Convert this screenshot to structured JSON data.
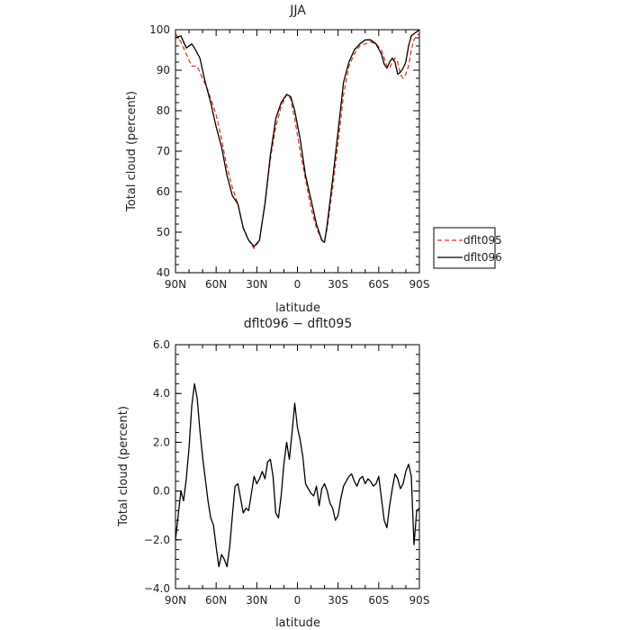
{
  "chart_data": [
    {
      "type": "line",
      "title": "JJA",
      "xlabel": "latitude",
      "ylabel": "Total cloud (percent)",
      "x_ticks": [
        90,
        60,
        30,
        0,
        -30,
        -60,
        -90
      ],
      "x_tick_labels": [
        "90N",
        "60N",
        "30N",
        "0",
        "30S",
        "60S",
        "90S"
      ],
      "xlim": [
        90,
        -90
      ],
      "ylim": [
        40,
        100
      ],
      "y_ticks": [
        40,
        50,
        60,
        70,
        80,
        90,
        100
      ],
      "y_tick_labels": [
        "40",
        "50",
        "60",
        "70",
        "80",
        "90",
        "100"
      ],
      "grid": false,
      "legend_position": "right",
      "series": [
        {
          "name": "dflt095",
          "color": "#e8322c",
          "dash": "dashed",
          "x": [
            90,
            86,
            82,
            78,
            74,
            70,
            66,
            60,
            56,
            52,
            48,
            44,
            40,
            36,
            32,
            28,
            24,
            20,
            16,
            12,
            8,
            5,
            2,
            -2,
            -6,
            -10,
            -14,
            -18,
            -20,
            -22,
            -26,
            -30,
            -34,
            -38,
            -42,
            -46,
            -50,
            -54,
            -58,
            -62,
            -64,
            -66,
            -68,
            -70,
            -72,
            -74,
            -76,
            -78,
            -80,
            -82,
            -84,
            -86,
            -88,
            -90
          ],
          "y": [
            99,
            97,
            94,
            91,
            91,
            88,
            85,
            79,
            73,
            66,
            61,
            57,
            51,
            48,
            46,
            48,
            57,
            68,
            76,
            81,
            84,
            83,
            78,
            70,
            63,
            56,
            51,
            48,
            48,
            51,
            61,
            72,
            84,
            91,
            94,
            96,
            96.5,
            97,
            96.5,
            95,
            93,
            91,
            90.5,
            92,
            93,
            92,
            89,
            88,
            89,
            91,
            95,
            97.5,
            98.5,
            99
          ]
        },
        {
          "name": "dflt096",
          "color": "#000000",
          "dash": "solid",
          "x": [
            90,
            86,
            82,
            78,
            76,
            72,
            68,
            64,
            60,
            56,
            52,
            48,
            44,
            40,
            36,
            32,
            28,
            24,
            20,
            16,
            12,
            8,
            5,
            2,
            -2,
            -6,
            -10,
            -14,
            -18,
            -20,
            -22,
            -26,
            -30,
            -34,
            -38,
            -42,
            -46,
            -50,
            -54,
            -58,
            -62,
            -64,
            -66,
            -68,
            -70,
            -72,
            -74,
            -76,
            -78,
            -80,
            -82,
            -84,
            -86,
            -88,
            -90
          ],
          "y": [
            98,
            98.5,
            95.5,
            96.5,
            95.5,
            93,
            87,
            82,
            76,
            71,
            64,
            59,
            57,
            51,
            48,
            46.5,
            48,
            57,
            69,
            78,
            82,
            84,
            83.5,
            80,
            73,
            64,
            58,
            52,
            48,
            47.5,
            52,
            63,
            75,
            87,
            92,
            95,
            96.5,
            97.5,
            97.5,
            96.5,
            94,
            91.5,
            90.5,
            92,
            93,
            92,
            89,
            89.5,
            90.5,
            92,
            96,
            98.5,
            99,
            99.5,
            100
          ]
        }
      ]
    },
    {
      "type": "line",
      "title": "dflt096 − dflt095",
      "xlabel": "latitude",
      "ylabel": "Total cloud (percent)",
      "x_ticks": [
        90,
        60,
        30,
        0,
        -30,
        -60,
        -90
      ],
      "x_tick_labels": [
        "90N",
        "60N",
        "30N",
        "0",
        "30S",
        "60S",
        "90S"
      ],
      "xlim": [
        90,
        -90
      ],
      "ylim": [
        -4,
        6
      ],
      "y_ticks": [
        -4,
        -2,
        0,
        2,
        4,
        6
      ],
      "y_tick_labels": [
        "−4.0",
        "−2.0",
        "0.0",
        "2.0",
        "4.0",
        "6.0"
      ],
      "grid": false,
      "series": [
        {
          "color": "#000000",
          "dash": "solid",
          "x": [
            90,
            88,
            86,
            84,
            82,
            80,
            78,
            76,
            74,
            72,
            70,
            68,
            66,
            64,
            62,
            60,
            58,
            56,
            54,
            52,
            50,
            48,
            46,
            44,
            42,
            40,
            38,
            36,
            34,
            32,
            30,
            28,
            26,
            24,
            22,
            20,
            18,
            16,
            14,
            12,
            10,
            8,
            6,
            4,
            2,
            0,
            -2,
            -4,
            -6,
            -8,
            -10,
            -12,
            -14,
            -16,
            -18,
            -20,
            -22,
            -24,
            -26,
            -28,
            -30,
            -32,
            -34,
            -36,
            -38,
            -40,
            -42,
            -44,
            -46,
            -48,
            -50,
            -52,
            -54,
            -56,
            -58,
            -60,
            -62,
            -64,
            -66,
            -68,
            -70,
            -72,
            -74,
            -76,
            -78,
            -80,
            -82,
            -84,
            -86,
            -88,
            -90
          ],
          "y": [
            -2,
            -1,
            0,
            -0.4,
            0.5,
            1.8,
            3.5,
            4.4,
            3.8,
            2.5,
            1.4,
            0.5,
            -0.4,
            -1.1,
            -1.4,
            -2.3,
            -3.1,
            -2.6,
            -2.8,
            -3.1,
            -2.3,
            -1.0,
            0.2,
            0.3,
            -0.3,
            -0.9,
            -0.7,
            -0.8,
            -0.1,
            0.6,
            0.3,
            0.5,
            0.8,
            0.5,
            1.2,
            1.3,
            0.6,
            -0.9,
            -1.1,
            -0.2,
            1.1,
            2.0,
            1.3,
            2.4,
            3.6,
            2.6,
            2.1,
            1.4,
            0.3,
            0.1,
            -0.1,
            -0.2,
            0.2,
            -0.6,
            0.1,
            0.3,
            0.0,
            -0.5,
            -0.7,
            -1.2,
            -1.0,
            -0.3,
            0.2,
            0.4,
            0.6,
            0.7,
            0.4,
            0.2,
            0.5,
            0.6,
            0.3,
            0.5,
            0.4,
            0.2,
            0.3,
            0.6,
            -0.3,
            -1.2,
            -1.5,
            -0.6,
            0.1,
            0.7,
            0.5,
            0.1,
            0.3,
            0.8,
            1.1,
            0.6,
            -2.2,
            -0.8,
            -0.7
          ]
        }
      ]
    }
  ]
}
